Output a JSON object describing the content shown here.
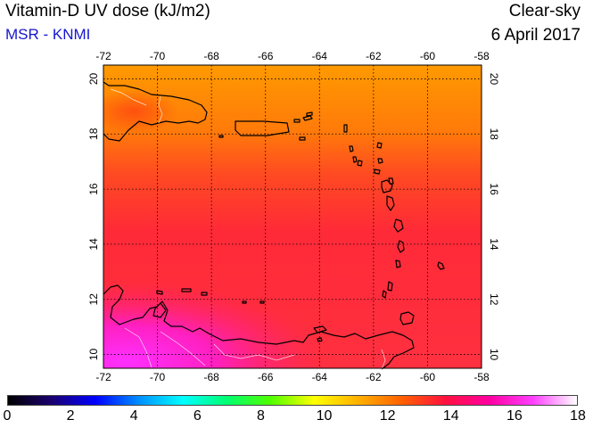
{
  "header": {
    "title": "Vitamin-D UV dose (kJ/m2)",
    "credit": "MSR - KNMI",
    "sky": "Clear-sky",
    "date": "6 April 2017"
  },
  "map": {
    "lon_range": [
      -72,
      -58
    ],
    "lat_range": [
      9.5,
      20.5
    ],
    "lon_ticks": [
      -72,
      -70,
      -68,
      -66,
      -64,
      -62,
      -60,
      -58
    ],
    "lat_ticks": [
      10,
      12,
      14,
      16,
      18,
      20
    ],
    "lon_tick_labels": [
      "-72",
      "-70",
      "-68",
      "-66",
      "-64",
      "-62",
      "-60",
      "-58"
    ],
    "lat_tick_labels": [
      "10",
      "12",
      "14",
      "16",
      "18",
      "20"
    ],
    "grid": "dotted",
    "coastline_color": "#000000",
    "border_color": "#ffffff",
    "field_colors": {
      "north": "#ff8c00",
      "middle": "#ff2a38",
      "south_land": "#ff20b0"
    }
  },
  "colorbar": {
    "min": 0,
    "max": 18,
    "tick_labels": [
      "0",
      "2",
      "4",
      "6",
      "8",
      "10",
      "12",
      "14",
      "16",
      "18"
    ],
    "stops": [
      "#000000",
      "#1a0070",
      "#0000ff",
      "#0090ff",
      "#00ffff",
      "#00ff70",
      "#50ff00",
      "#ffff00",
      "#ffb000",
      "#ff6000",
      "#ff1040",
      "#ff00a0",
      "#ff40ff",
      "#ffffff"
    ]
  }
}
